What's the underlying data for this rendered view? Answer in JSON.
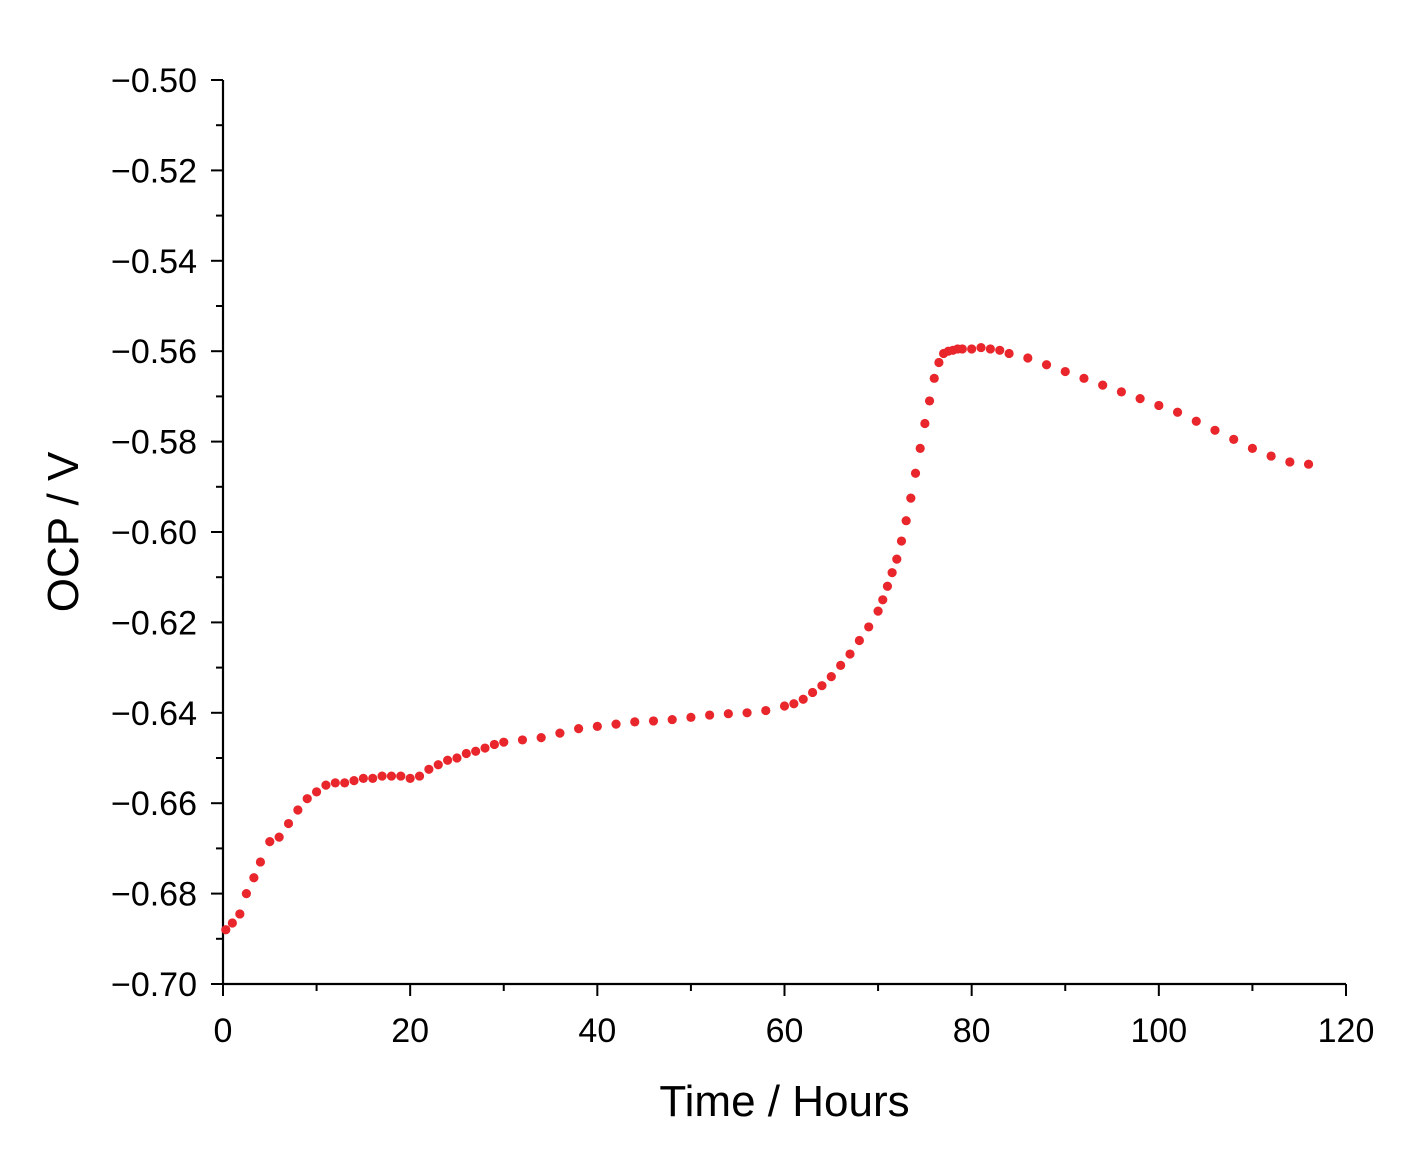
{
  "chart_data": {
    "type": "scatter",
    "xlabel": "Time / Hours",
    "ylabel": "OCP / V",
    "xlim": [
      0,
      120
    ],
    "ylim": [
      -0.7,
      -0.5
    ],
    "x_ticks": [
      0,
      20,
      40,
      60,
      80,
      100,
      120
    ],
    "x_tick_labels": [
      "0",
      "20",
      "40",
      "60",
      "80",
      "100",
      "120"
    ],
    "y_ticks": [
      -0.7,
      -0.68,
      -0.66,
      -0.64,
      -0.62,
      -0.6,
      -0.58,
      -0.56,
      -0.54,
      -0.52,
      -0.5
    ],
    "y_tick_labels": [
      "−0.70",
      "−0.68",
      "−0.66",
      "−0.64",
      "−0.62",
      "−0.60",
      "−0.58",
      "−0.56",
      "−0.54",
      "−0.52",
      "−0.50"
    ],
    "grid": false,
    "marker_color": "#e8262b",
    "series": [
      {
        "x": [
          0.3,
          1.0,
          1.8,
          2.5,
          3.3,
          4.0,
          5.0,
          6.0,
          7.0,
          8.0,
          9.0,
          10.0,
          11.0,
          12.0,
          13.0,
          14.0,
          15.0,
          16.0,
          17.0,
          18.0,
          19.0,
          20.0,
          21.0,
          22.0,
          23.0,
          24.0,
          25.0,
          26.0,
          27.0,
          28.0,
          29.0,
          30.0,
          32.0,
          34.0,
          36.0,
          38.0,
          40.0,
          42.0,
          44.0,
          46.0,
          48.0,
          50.0,
          52.0,
          54.0,
          56.0,
          58.0,
          60.0,
          61.0,
          62.0,
          63.0,
          64.0,
          65.0,
          66.0,
          67.0,
          68.0,
          69.0,
          70.0,
          70.5,
          71.0,
          71.5,
          72.0,
          72.5,
          73.0,
          73.5,
          74.0,
          74.5,
          75.0,
          75.5,
          76.0,
          76.5,
          77.0,
          77.5,
          78.0,
          78.5,
          79.0,
          80.0,
          81.0,
          82.0,
          83.0,
          84.0,
          86.0,
          88.0,
          90.0,
          92.0,
          94.0,
          96.0,
          98.0,
          100.0,
          102.0,
          104.0,
          106.0,
          108.0,
          110.0,
          112.0,
          114.0,
          116.0
        ],
        "y": [
          -0.688,
          -0.6865,
          -0.6845,
          -0.68,
          -0.6765,
          -0.673,
          -0.6685,
          -0.6675,
          -0.6645,
          -0.6615,
          -0.659,
          -0.6575,
          -0.656,
          -0.6555,
          -0.6555,
          -0.655,
          -0.6545,
          -0.6545,
          -0.654,
          -0.654,
          -0.654,
          -0.6545,
          -0.654,
          -0.6525,
          -0.6515,
          -0.6505,
          -0.65,
          -0.649,
          -0.6485,
          -0.6478,
          -0.647,
          -0.6465,
          -0.646,
          -0.6455,
          -0.6445,
          -0.6435,
          -0.643,
          -0.6425,
          -0.642,
          -0.6418,
          -0.6415,
          -0.641,
          -0.6405,
          -0.6402,
          -0.64,
          -0.6395,
          -0.6385,
          -0.638,
          -0.637,
          -0.6355,
          -0.634,
          -0.632,
          -0.6295,
          -0.627,
          -0.624,
          -0.621,
          -0.6175,
          -0.615,
          -0.612,
          -0.609,
          -0.606,
          -0.602,
          -0.5975,
          -0.5925,
          -0.587,
          -0.5815,
          -0.576,
          -0.571,
          -0.566,
          -0.5625,
          -0.5605,
          -0.56,
          -0.5598,
          -0.5595,
          -0.5595,
          -0.5595,
          -0.5592,
          -0.5595,
          -0.5598,
          -0.5605,
          -0.5615,
          -0.563,
          -0.5645,
          -0.566,
          -0.5675,
          -0.569,
          -0.5705,
          -0.572,
          -0.5735,
          -0.5755,
          -0.5775,
          -0.5795,
          -0.5815,
          -0.5832,
          -0.5845,
          -0.585
        ]
      }
    ]
  }
}
